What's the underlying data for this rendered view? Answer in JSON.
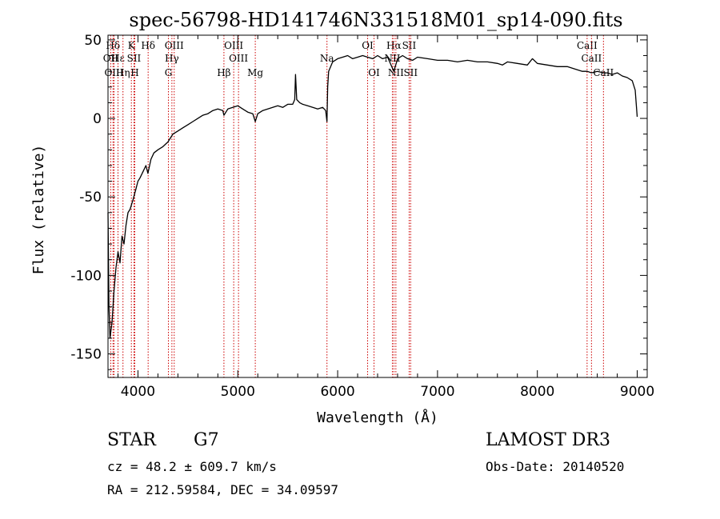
{
  "chart_data": {
    "type": "line",
    "title": "spec-56798-HD141746N331518M01_sp14-090.fits",
    "xlabel": "Wavelength (Å)",
    "ylabel": "Flux (relative)",
    "xlim": [
      3700,
      9100
    ],
    "ylim": [
      -165,
      53
    ],
    "x_ticks": [
      4000,
      5000,
      6000,
      7000,
      8000,
      9000
    ],
    "y_ticks": [
      -150,
      -100,
      -50,
      0,
      50
    ],
    "series": [
      {
        "name": "spectrum",
        "x": [
          3700,
          3710,
          3720,
          3740,
          3760,
          3780,
          3800,
          3820,
          3840,
          3860,
          3880,
          3900,
          3920,
          3950,
          3980,
          4000,
          4020,
          4050,
          4080,
          4100,
          4130,
          4160,
          4200,
          4250,
          4300,
          4330,
          4350,
          4400,
          4450,
          4500,
          4550,
          4600,
          4650,
          4700,
          4750,
          4800,
          4850,
          4861,
          4900,
          4950,
          5000,
          5050,
          5100,
          5150,
          5175,
          5200,
          5250,
          5300,
          5350,
          5400,
          5450,
          5500,
          5550,
          5570,
          5578,
          5590,
          5620,
          5650,
          5700,
          5750,
          5800,
          5850,
          5880,
          5893,
          5900,
          5910,
          5950,
          6000,
          6050,
          6100,
          6150,
          6200,
          6250,
          6300,
          6350,
          6400,
          6450,
          6500,
          6563,
          6600,
          6650,
          6700,
          6750,
          6800,
          6900,
          7000,
          7100,
          7200,
          7300,
          7400,
          7500,
          7600,
          7650,
          7700,
          7800,
          7900,
          7950,
          8000,
          8100,
          8200,
          8300,
          8400,
          8450,
          8500,
          8542,
          8600,
          8662,
          8700,
          8750,
          8800,
          8850,
          8900,
          8950,
          8980,
          9000
        ],
        "y": [
          -60,
          -120,
          -140,
          -130,
          -110,
          -95,
          -85,
          -92,
          -75,
          -80,
          -68,
          -60,
          -58,
          -52,
          -45,
          -40,
          -38,
          -34,
          -30,
          -35,
          -26,
          -22,
          -20,
          -18,
          -15,
          -12,
          -10,
          -8,
          -6,
          -4,
          -2,
          0,
          2,
          3,
          5,
          6,
          5,
          2,
          6,
          7,
          8,
          6,
          4,
          3,
          -2,
          3,
          5,
          6,
          7,
          8,
          7,
          9,
          9,
          12,
          28,
          12,
          10,
          9,
          8,
          7,
          6,
          7,
          5,
          -2,
          20,
          30,
          36,
          38,
          39,
          40,
          38,
          39,
          40,
          39,
          38,
          40,
          38,
          39,
          30,
          38,
          40,
          38,
          37,
          39,
          38,
          37,
          37,
          36,
          37,
          36,
          36,
          35,
          34,
          36,
          35,
          34,
          38,
          35,
          34,
          33,
          33,
          31,
          30,
          30,
          29,
          30,
          29,
          29,
          28,
          29,
          27,
          26,
          24,
          18,
          1
        ]
      }
    ],
    "spectral_lines": [
      {
        "label": "Hδ",
        "x": 3750,
        "row": 1
      },
      {
        "label": "OII",
        "x": 3727,
        "row": 2
      },
      {
        "label": "OIII",
        "x": 3760,
        "row": 3
      },
      {
        "label": "Hε",
        "x": 3800,
        "row": 2
      },
      {
        "label": "Hη",
        "x": 3850,
        "row": 3
      },
      {
        "label": "K",
        "x": 3934,
        "row": 1
      },
      {
        "label": "SII",
        "x": 3960,
        "row": 2
      },
      {
        "label": "H",
        "x": 3968,
        "row": 3
      },
      {
        "label": "Hδ",
        "x": 4102,
        "row": 1
      },
      {
        "label": "OIII",
        "x": 4363,
        "row": 1
      },
      {
        "label": "Hγ",
        "x": 4340,
        "row": 2
      },
      {
        "label": "G",
        "x": 4305,
        "row": 3
      },
      {
        "label": "Hβ",
        "x": 4861,
        "row": 3
      },
      {
        "label": "OIII",
        "x": 4959,
        "row": 1
      },
      {
        "label": "OIII",
        "x": 5007,
        "row": 2
      },
      {
        "label": "Mg",
        "x": 5175,
        "row": 3
      },
      {
        "label": "Na",
        "x": 5893,
        "row": 2
      },
      {
        "label": "OI",
        "x": 6300,
        "row": 1
      },
      {
        "label": "OI",
        "x": 6364,
        "row": 3
      },
      {
        "label": "Hα",
        "x": 6563,
        "row": 1
      },
      {
        "label": "NII",
        "x": 6548,
        "row": 2
      },
      {
        "label": "NII",
        "x": 6583,
        "row": 3
      },
      {
        "label": "SII",
        "x": 6716,
        "row": 1
      },
      {
        "label": "SII",
        "x": 6731,
        "row": 3
      },
      {
        "label": "CaII",
        "x": 8498,
        "row": 1
      },
      {
        "label": "CaII",
        "x": 8542,
        "row": 2
      },
      {
        "label": "CaII",
        "x": 8662,
        "row": 3
      }
    ]
  },
  "info": {
    "object_class": "STAR",
    "subclass": "G7",
    "survey": "LAMOST DR3",
    "redshift": "cz = 48.2 ± 609.7 km/s",
    "obs_date": "Obs-Date: 20140520",
    "coords": "RA = 212.59584, DEC =  34.09597"
  },
  "colors": {
    "line_marker": "#cc0000",
    "spectrum": "#000000"
  }
}
